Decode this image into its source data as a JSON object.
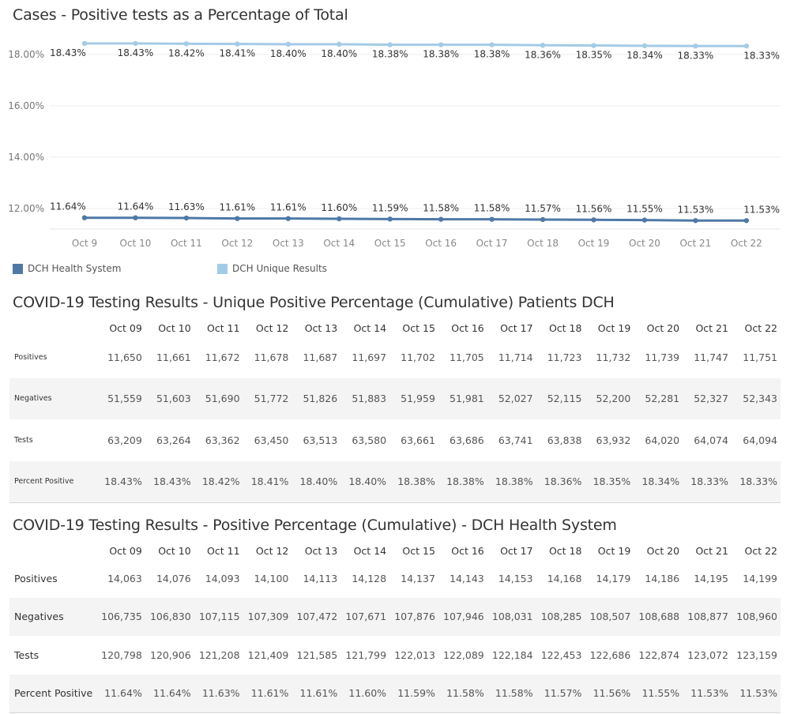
{
  "chart_data": {
    "type": "line",
    "title": "Cases - Positive tests as a Percentage of Total",
    "x": [
      "Oct 9",
      "Oct 10",
      "Oct 11",
      "Oct 12",
      "Oct 13",
      "Oct 14",
      "Oct 15",
      "Oct 16",
      "Oct 17",
      "Oct 18",
      "Oct 19",
      "Oct 20",
      "Oct 21",
      "Oct 22"
    ],
    "y_ticks": [
      "18.00%",
      "16.00%",
      "14.00%",
      "12.00%"
    ],
    "legend_position": "bottom-left",
    "grid": true,
    "series": [
      {
        "name": "DCH Unique Results",
        "color": "#a4cbe6",
        "values": [
          18.43,
          18.43,
          18.42,
          18.41,
          18.4,
          18.4,
          18.38,
          18.38,
          18.38,
          18.36,
          18.35,
          18.34,
          18.33,
          18.33
        ],
        "labels": [
          "18.43%",
          "18.43%",
          "18.42%",
          "18.41%",
          "18.40%",
          "18.40%",
          "18.38%",
          "18.38%",
          "18.38%",
          "18.36%",
          "18.35%",
          "18.34%",
          "18.33%",
          "18.33%"
        ]
      },
      {
        "name": "DCH Health System",
        "color": "#4e79a7",
        "values": [
          11.64,
          11.64,
          11.63,
          11.61,
          11.61,
          11.6,
          11.59,
          11.58,
          11.58,
          11.57,
          11.56,
          11.55,
          11.53,
          11.53
        ],
        "labels": [
          "11.64%",
          "11.64%",
          "11.63%",
          "11.61%",
          "11.61%",
          "11.60%",
          "11.59%",
          "11.58%",
          "11.58%",
          "11.57%",
          "11.56%",
          "11.55%",
          "11.53%",
          "11.53%"
        ]
      }
    ],
    "legend": [
      {
        "name": "DCH Health System",
        "color": "#4e79a7"
      },
      {
        "name": "DCH Unique Results",
        "color": "#a4cbe6"
      }
    ]
  },
  "table1": {
    "title": "COVID-19 Testing Results - Unique Positive Percentage (Cumulative) Patients DCH",
    "columns": [
      "Oct 09",
      "Oct 10",
      "Oct 11",
      "Oct 12",
      "Oct 13",
      "Oct 14",
      "Oct 15",
      "Oct 16",
      "Oct 17",
      "Oct 18",
      "Oct 19",
      "Oct 20",
      "Oct 21",
      "Oct 22"
    ],
    "rows": [
      {
        "label": "Positives",
        "values": [
          "11,650",
          "11,661",
          "11,672",
          "11,678",
          "11,687",
          "11,697",
          "11,702",
          "11,705",
          "11,714",
          "11,723",
          "11,732",
          "11,739",
          "11,747",
          "11,751"
        ]
      },
      {
        "label": "Negatives",
        "values": [
          "51,559",
          "51,603",
          "51,690",
          "51,772",
          "51,826",
          "51,883",
          "51,959",
          "51,981",
          "52,027",
          "52,115",
          "52,200",
          "52,281",
          "52,327",
          "52,343"
        ]
      },
      {
        "label": "Tests",
        "values": [
          "63,209",
          "63,264",
          "63,362",
          "63,450",
          "63,513",
          "63,580",
          "63,661",
          "63,686",
          "63,741",
          "63,838",
          "63,932",
          "64,020",
          "64,074",
          "64,094"
        ]
      },
      {
        "label": "Percent Positive",
        "values": [
          "18.43%",
          "18.43%",
          "18.42%",
          "18.41%",
          "18.40%",
          "18.40%",
          "18.38%",
          "18.38%",
          "18.38%",
          "18.36%",
          "18.35%",
          "18.34%",
          "18.33%",
          "18.33%"
        ]
      }
    ]
  },
  "table2": {
    "title": "COVID-19 Testing Results - Positive Percentage (Cumulative) - DCH Health System",
    "columns": [
      "Oct 09",
      "Oct 10",
      "Oct 11",
      "Oct 12",
      "Oct 13",
      "Oct 14",
      "Oct 15",
      "Oct 16",
      "Oct 17",
      "Oct 18",
      "Oct 19",
      "Oct 20",
      "Oct 21",
      "Oct 22"
    ],
    "rows": [
      {
        "label": "Positives",
        "values": [
          "14,063",
          "14,076",
          "14,093",
          "14,100",
          "14,113",
          "14,128",
          "14,137",
          "14,143",
          "14,153",
          "14,168",
          "14,179",
          "14,186",
          "14,195",
          "14,199"
        ]
      },
      {
        "label": "Negatives",
        "values": [
          "106,735",
          "106,830",
          "107,115",
          "107,309",
          "107,472",
          "107,671",
          "107,876",
          "107,946",
          "108,031",
          "108,285",
          "108,507",
          "108,688",
          "108,877",
          "108,960"
        ]
      },
      {
        "label": "Tests",
        "values": [
          "120,798",
          "120,906",
          "121,208",
          "121,409",
          "121,585",
          "121,799",
          "122,013",
          "122,089",
          "122,184",
          "122,453",
          "122,686",
          "122,874",
          "123,072",
          "123,159"
        ]
      },
      {
        "label": "Percent Positive",
        "values": [
          "11.64%",
          "11.64%",
          "11.63%",
          "11.61%",
          "11.61%",
          "11.60%",
          "11.59%",
          "11.58%",
          "11.58%",
          "11.57%",
          "11.56%",
          "11.55%",
          "11.53%",
          "11.53%"
        ]
      }
    ]
  }
}
